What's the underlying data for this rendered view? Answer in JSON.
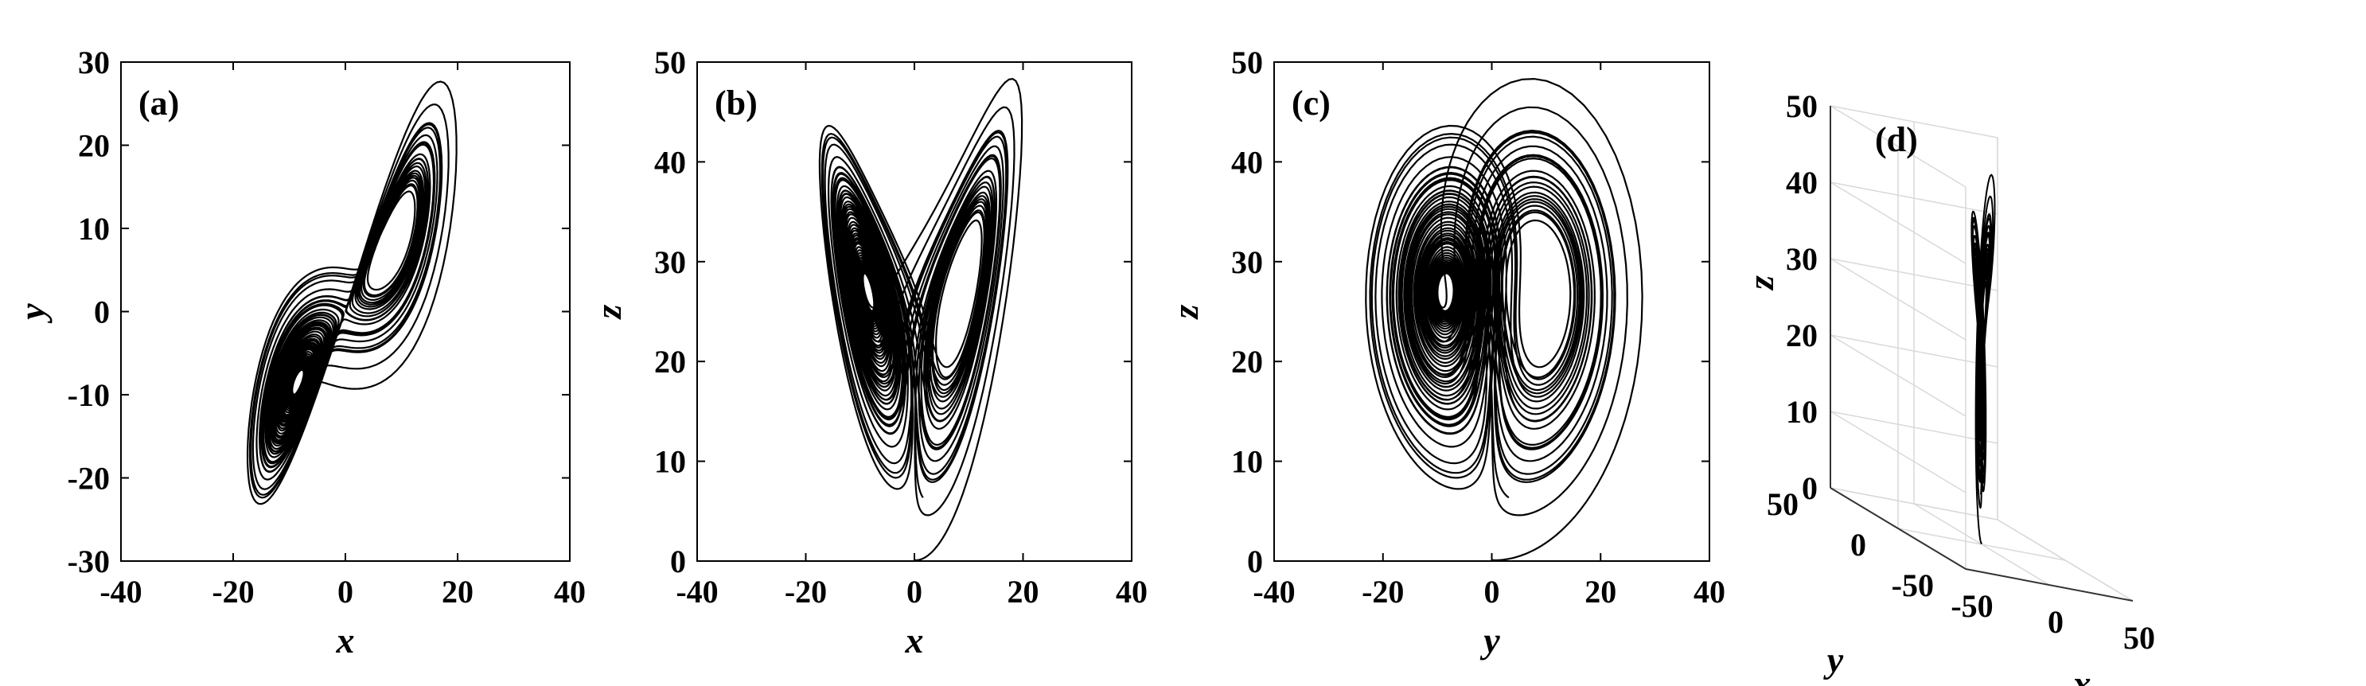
{
  "chart_data": [
    {
      "type": "line",
      "panel_label": "(a)",
      "xlabel": "x",
      "ylabel": "y",
      "xlim": [
        -40,
        40
      ],
      "ylim": [
        -30,
        30
      ],
      "xticks": [
        -40,
        -20,
        0,
        20,
        40
      ],
      "yticks": [
        -30,
        -20,
        -10,
        0,
        10,
        20,
        30
      ],
      "series": [
        {
          "values": "attractor trajectory projected onto x-y plane"
        }
      ]
    },
    {
      "type": "line",
      "panel_label": "(b)",
      "xlabel": "x",
      "ylabel": "z",
      "xlim": [
        -40,
        40
      ],
      "ylim": [
        0,
        50
      ],
      "xticks": [
        -40,
        -20,
        0,
        20,
        40
      ],
      "yticks": [
        0,
        10,
        20,
        30,
        40,
        50
      ],
      "series": [
        {
          "values": "attractor trajectory projected onto x-z plane"
        }
      ]
    },
    {
      "type": "line",
      "panel_label": "(c)",
      "xlabel": "y",
      "ylabel": "z",
      "xlim": [
        -40,
        40
      ],
      "ylim": [
        0,
        50
      ],
      "xticks": [
        -40,
        -20,
        0,
        20,
        40
      ],
      "yticks": [
        0,
        10,
        20,
        30,
        40,
        50
      ],
      "series": [
        {
          "values": "attractor trajectory projected onto y-z plane"
        }
      ]
    },
    {
      "type": "line",
      "panel_label": "(d)",
      "xlabel": "x",
      "ylabel": "y",
      "zlabel": "z",
      "xlim": [
        -50,
        50
      ],
      "ylim": [
        -50,
        50
      ],
      "zlim": [
        0,
        50
      ],
      "xticks": [
        -50,
        0,
        50
      ],
      "yticks": [
        -50,
        0,
        50
      ],
      "zticks": [
        0,
        10,
        20,
        30,
        40,
        50
      ],
      "series": [
        {
          "values": "3D attractor trajectory"
        }
      ]
    }
  ]
}
